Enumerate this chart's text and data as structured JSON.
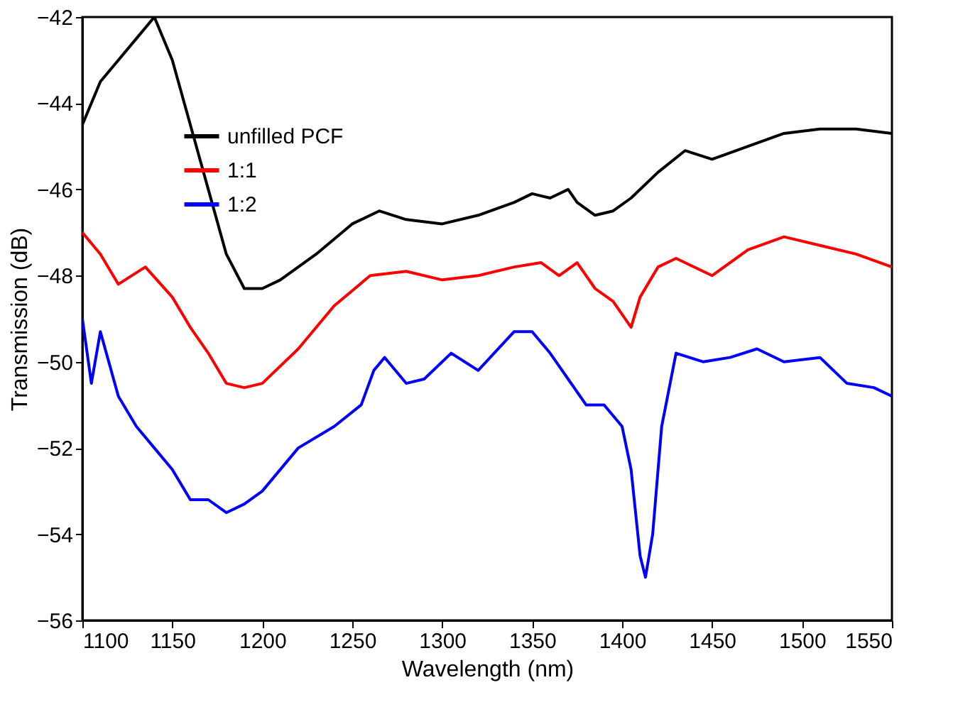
{
  "chart_data": {
    "type": "line",
    "xlabel": "Wavelength (nm)",
    "ylabel": "Transmission (dB)",
    "xlim": [
      1100,
      1550
    ],
    "xticks": [
      1100,
      1150,
      1200,
      1250,
      1300,
      1350,
      1400,
      1450,
      1500,
      1550
    ],
    "ylim": [
      -56,
      -42
    ],
    "yticks": [
      -56,
      -54,
      -52,
      -50,
      -48,
      -46,
      -44,
      -42
    ],
    "grid": false,
    "legend": "top left",
    "line_style": "solid",
    "marker": "none",
    "series": [
      {
        "name": "unfilled PCF",
        "color": "#000000",
        "x": [
          1100,
          1110,
          1120,
          1130,
          1140,
          1150,
          1160,
          1170,
          1180,
          1190,
          1200,
          1210,
          1230,
          1250,
          1265,
          1280,
          1300,
          1320,
          1340,
          1350,
          1360,
          1370,
          1375,
          1385,
          1395,
          1405,
          1420,
          1435,
          1450,
          1470,
          1490,
          1510,
          1530,
          1550
        ],
        "values": [
          -44.5,
          -43.5,
          -43,
          -42.5,
          -42,
          -43,
          -44.5,
          -46,
          -47.5,
          -48.3,
          -48.3,
          -48.1,
          -47.5,
          -46.8,
          -46.5,
          -46.7,
          -46.8,
          -46.6,
          -46.3,
          -46.1,
          -46.2,
          -46.0,
          -46.3,
          -46.6,
          -46.5,
          -46.2,
          -45.6,
          -45.1,
          -45.3,
          -45.0,
          -44.7,
          -44.6,
          -44.6,
          -44.7
        ]
      },
      {
        "name": "1:1",
        "color": "#ff0000",
        "x": [
          1100,
          1110,
          1120,
          1135,
          1150,
          1160,
          1170,
          1180,
          1190,
          1200,
          1220,
          1240,
          1260,
          1280,
          1300,
          1320,
          1340,
          1355,
          1365,
          1375,
          1385,
          1395,
          1405,
          1410,
          1420,
          1430,
          1450,
          1470,
          1490,
          1510,
          1530,
          1550
        ],
        "values": [
          -47,
          -47.5,
          -48.2,
          -47.8,
          -48.5,
          -49.2,
          -49.8,
          -50.5,
          -50.6,
          -50.5,
          -49.7,
          -48.7,
          -48.0,
          -47.9,
          -48.1,
          -48.0,
          -47.8,
          -47.7,
          -48.0,
          -47.7,
          -48.3,
          -48.6,
          -49.2,
          -48.5,
          -47.8,
          -47.6,
          -48.0,
          -47.4,
          -47.1,
          -47.3,
          -47.5,
          -47.8
        ]
      },
      {
        "name": "1:2",
        "color": "#0000ff",
        "x": [
          1100,
          1105,
          1110,
          1120,
          1130,
          1140,
          1150,
          1160,
          1170,
          1180,
          1190,
          1200,
          1220,
          1240,
          1255,
          1262,
          1268,
          1280,
          1290,
          1305,
          1320,
          1340,
          1350,
          1360,
          1370,
          1380,
          1390,
          1400,
          1405,
          1410,
          1413,
          1417,
          1422,
          1430,
          1445,
          1460,
          1475,
          1490,
          1510,
          1525,
          1540,
          1550
        ],
        "values": [
          -49.0,
          -50.5,
          -49.3,
          -50.8,
          -51.5,
          -52.0,
          -52.5,
          -53.2,
          -53.2,
          -53.5,
          -53.3,
          -53.0,
          -52.0,
          -51.5,
          -51.0,
          -50.2,
          -49.9,
          -50.5,
          -50.4,
          -49.8,
          -50.2,
          -49.3,
          -49.3,
          -49.8,
          -50.4,
          -51.0,
          -51.0,
          -51.5,
          -52.5,
          -54.5,
          -55.0,
          -54.0,
          -51.5,
          -49.8,
          -50.0,
          -49.9,
          -49.7,
          -50.0,
          -49.9,
          -50.5,
          -50.6,
          -50.8
        ]
      }
    ]
  }
}
